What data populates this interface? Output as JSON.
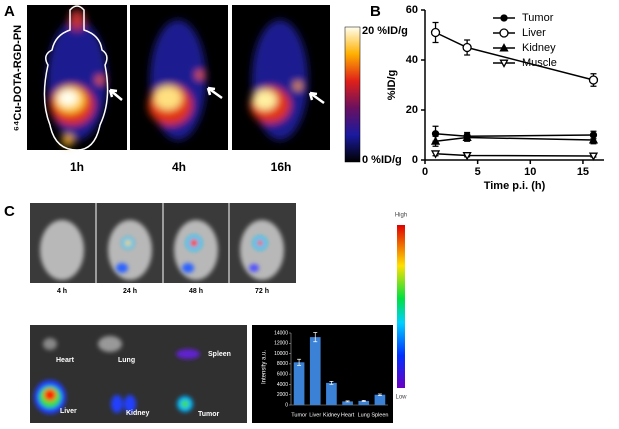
{
  "panels": {
    "a": {
      "label": "A",
      "probe": "⁶⁴Cu-DOTA-RGD-PN",
      "times": [
        "1h",
        "4h",
        "16h"
      ],
      "scale_max": "20 %ID/g",
      "scale_min": "0 %ID/g"
    },
    "c": {
      "label": "C",
      "times": [
        "4 h",
        "24 h",
        "48 h",
        "72 h"
      ],
      "scale_high": "High",
      "scale_low": "Low",
      "organs": [
        "Heart",
        "Lung",
        "Spleen",
        "Liver",
        "Kidney",
        "Tumor"
      ]
    }
  },
  "chart_data": [
    {
      "type": "line",
      "panel_label": "B",
      "x_label": "Time p.i. (h)",
      "y_label": "%ID/g",
      "x": [
        1,
        4,
        16
      ],
      "xlim": [
        0,
        17
      ],
      "xticks": [
        0,
        5,
        10,
        15
      ],
      "ylim": [
        0,
        60
      ],
      "yticks": [
        0,
        20,
        40,
        60
      ],
      "series": [
        {
          "name": "Tumor",
          "color": "#000000",
          "marker": "filled-circle",
          "values": [
            10.5,
            9.5,
            10
          ],
          "errors": [
            3,
            1.5,
            1.5
          ]
        },
        {
          "name": "Liver",
          "color": "#000000",
          "marker": "open-circle",
          "values": [
            51,
            45,
            32
          ],
          "errors": [
            4,
            3,
            2.5
          ]
        },
        {
          "name": "Kidney",
          "color": "#000000",
          "marker": "filled-triangle",
          "values": [
            7.5,
            9,
            8
          ],
          "errors": [
            2,
            1.5,
            1.5
          ]
        },
        {
          "name": "Muscle",
          "color": "#000000",
          "marker": "open-triangle-down",
          "values": [
            2.5,
            1.8,
            1.6
          ],
          "errors": [
            0.8,
            0.5,
            0.4
          ]
        }
      ]
    },
    {
      "type": "bar",
      "y_label": "Intensity a.u.",
      "color": "#3b82d6",
      "categories": [
        "Tumor",
        "Liver",
        "Kidney",
        "Heart",
        "Lung",
        "Spleen"
      ],
      "values": [
        8300,
        13200,
        4300,
        700,
        800,
        2000
      ],
      "errors": [
        600,
        900,
        300,
        100,
        100,
        150
      ],
      "ylim": [
        0,
        14000
      ],
      "yticks": [
        0,
        2000,
        4000,
        6000,
        8000,
        10000,
        12000,
        14000
      ]
    }
  ]
}
